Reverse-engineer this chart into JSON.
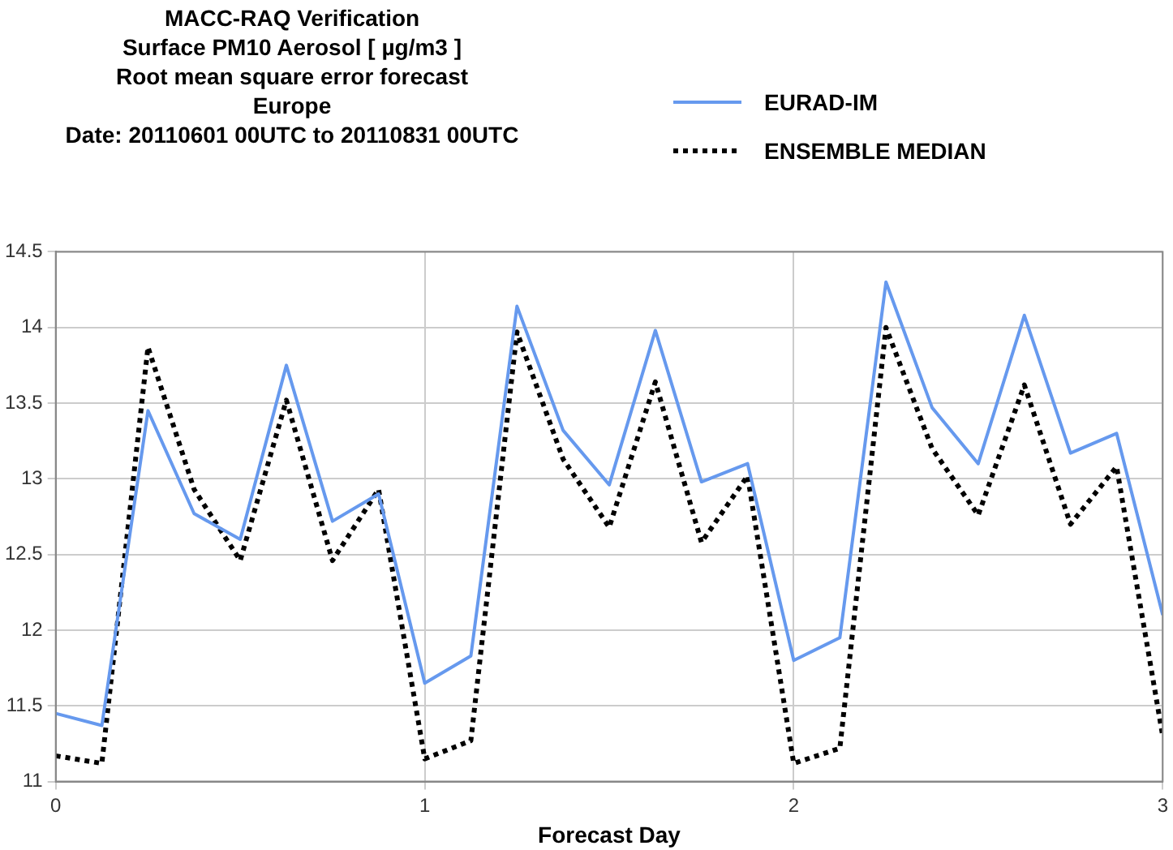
{
  "chart_data": {
    "type": "line",
    "title": "MACC-RAQ Verification\nSurface PM10 Aerosol [ µg/m3 ]\nRoot mean square error forecast\nEurope\nDate: 20110601 00UTC to 20110831 00UTC",
    "xlabel": "Forecast Day",
    "x": [
      0,
      0.125,
      0.25,
      0.375,
      0.5,
      0.625,
      0.75,
      0.875,
      1,
      1.125,
      1.25,
      1.375,
      1.5,
      1.625,
      1.75,
      1.875,
      2,
      2.125,
      2.25,
      2.375,
      2.5,
      2.625,
      2.75,
      2.875,
      3
    ],
    "series": [
      {
        "name": "EURAD-IM",
        "color": "#6699ee",
        "line_style": "solid",
        "values": [
          11.45,
          11.37,
          13.45,
          12.77,
          12.6,
          13.75,
          12.72,
          12.9,
          11.65,
          11.83,
          14.14,
          13.32,
          12.96,
          13.98,
          12.98,
          13.1,
          11.8,
          11.95,
          14.3,
          13.47,
          13.1,
          14.08,
          13.17,
          13.3,
          12.1
        ]
      },
      {
        "name": "ENSEMBLE MEDIAN",
        "color": "#000000",
        "line_style": "dotted",
        "values": [
          11.17,
          11.12,
          13.87,
          12.93,
          12.46,
          13.52,
          12.46,
          12.93,
          11.15,
          11.27,
          13.97,
          13.13,
          12.68,
          13.64,
          12.58,
          13.02,
          11.12,
          11.22,
          14.0,
          13.2,
          12.76,
          13.62,
          12.7,
          13.08,
          11.3
        ]
      }
    ],
    "xlim": [
      0,
      3
    ],
    "xticks": [
      0,
      1,
      2,
      3
    ],
    "ylim": [
      11,
      14.5
    ],
    "yticks": [
      11,
      11.5,
      12,
      12.5,
      13,
      13.5,
      14,
      14.5
    ],
    "grid": true,
    "legend": "top right",
    "marker": "none"
  }
}
